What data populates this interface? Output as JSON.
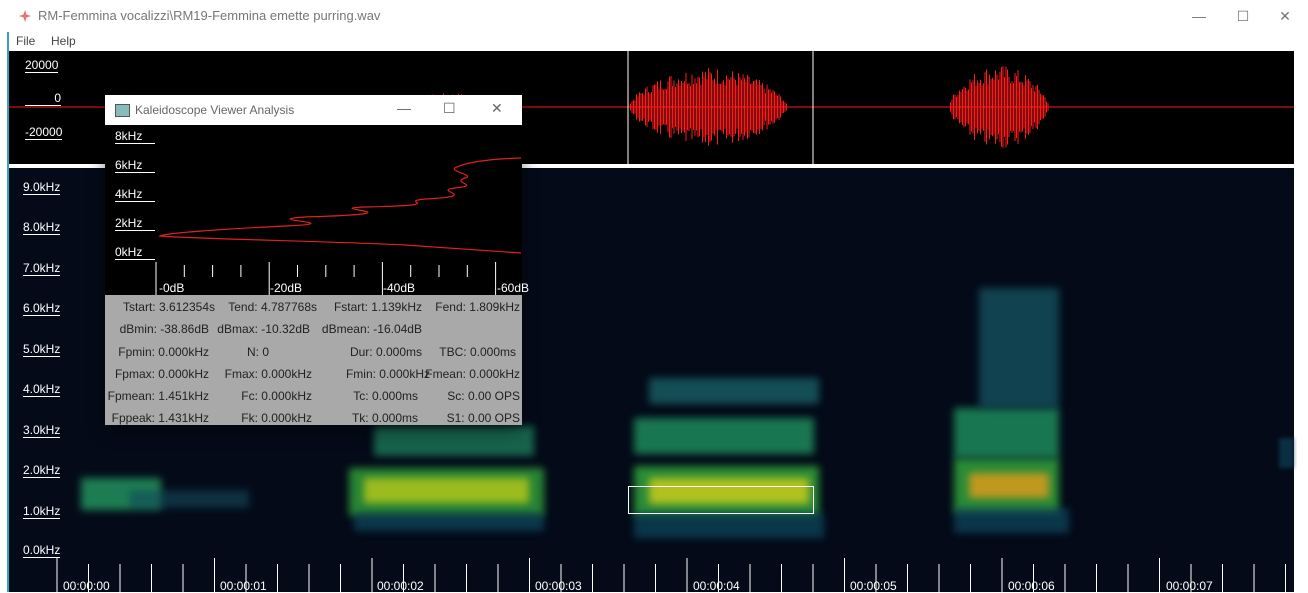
{
  "window": {
    "title": "RM-Femmina vocalizzi\\RM19-Femmina emette purring.wav",
    "minimize": "—",
    "maximize": "☐",
    "close": "✕"
  },
  "menu": {
    "file": "File",
    "help": "Help"
  },
  "waveform": {
    "labels": [
      "20000",
      "0",
      "-20000"
    ],
    "waveform_color": "#ff1a1a"
  },
  "spectrogram": {
    "freq_labels": [
      "9.0kHz",
      "8.0kHz",
      "7.0kHz",
      "6.0kHz",
      "5.0kHz",
      "4.0kHz",
      "3.0kHz",
      "2.0kHz",
      "1.0kHz",
      "0.0kHz"
    ],
    "time_labels": [
      "00:00:00",
      "00:00:01",
      "00:00:02",
      "00:00:03",
      "00:00:04",
      "00:00:05",
      "00:00:06",
      "00:00:07"
    ]
  },
  "analysis_window": {
    "title": "Kaleidoscope Viewer Analysis",
    "minimize": "—",
    "maximize": "☐",
    "close": "✕",
    "freq_labels": [
      "8kHz",
      "6kHz",
      "4kHz",
      "2kHz",
      "0kHz"
    ],
    "db_labels": [
      "-0dB",
      "-20dB",
      "-40dB",
      "-60dB"
    ],
    "curve_color": "#e02020",
    "stats": {
      "tstart": "Tstart: 3.612354s",
      "tend": "Tend: 4.787768s",
      "fstart": "Fstart: 1.139kHz",
      "fend": "Fend: 1.809kHz",
      "dbmin": "dBmin: -38.86dB",
      "dbmax": "dBmax: -10.32dB",
      "dbmean": "dBmean: -16.04dB",
      "fpmin": "Fpmin: 0.000kHz",
      "n": "N: 0",
      "dur": "Dur: 0.000ms",
      "tbc": "TBC: 0.000ms",
      "fpmax": "Fpmax: 0.000kHz",
      "fmax": "Fmax: 0.000kHz",
      "fmin": "Fmin: 0.000kHz",
      "fmean": "Fmean: 0.000kHz",
      "fpmean": "Fpmean: 1.451kHz",
      "fc": "Fc: 0.000kHz",
      "tc": "Tc: 0.000ms",
      "sc": "Sc: 0.00 OPS",
      "fppeak": "Fppeak: 1.431kHz",
      "fk": "Fk: 0.000kHz",
      "tk": "Tk: 0.000ms",
      "s1": "S1: 0.00 OPS"
    }
  }
}
